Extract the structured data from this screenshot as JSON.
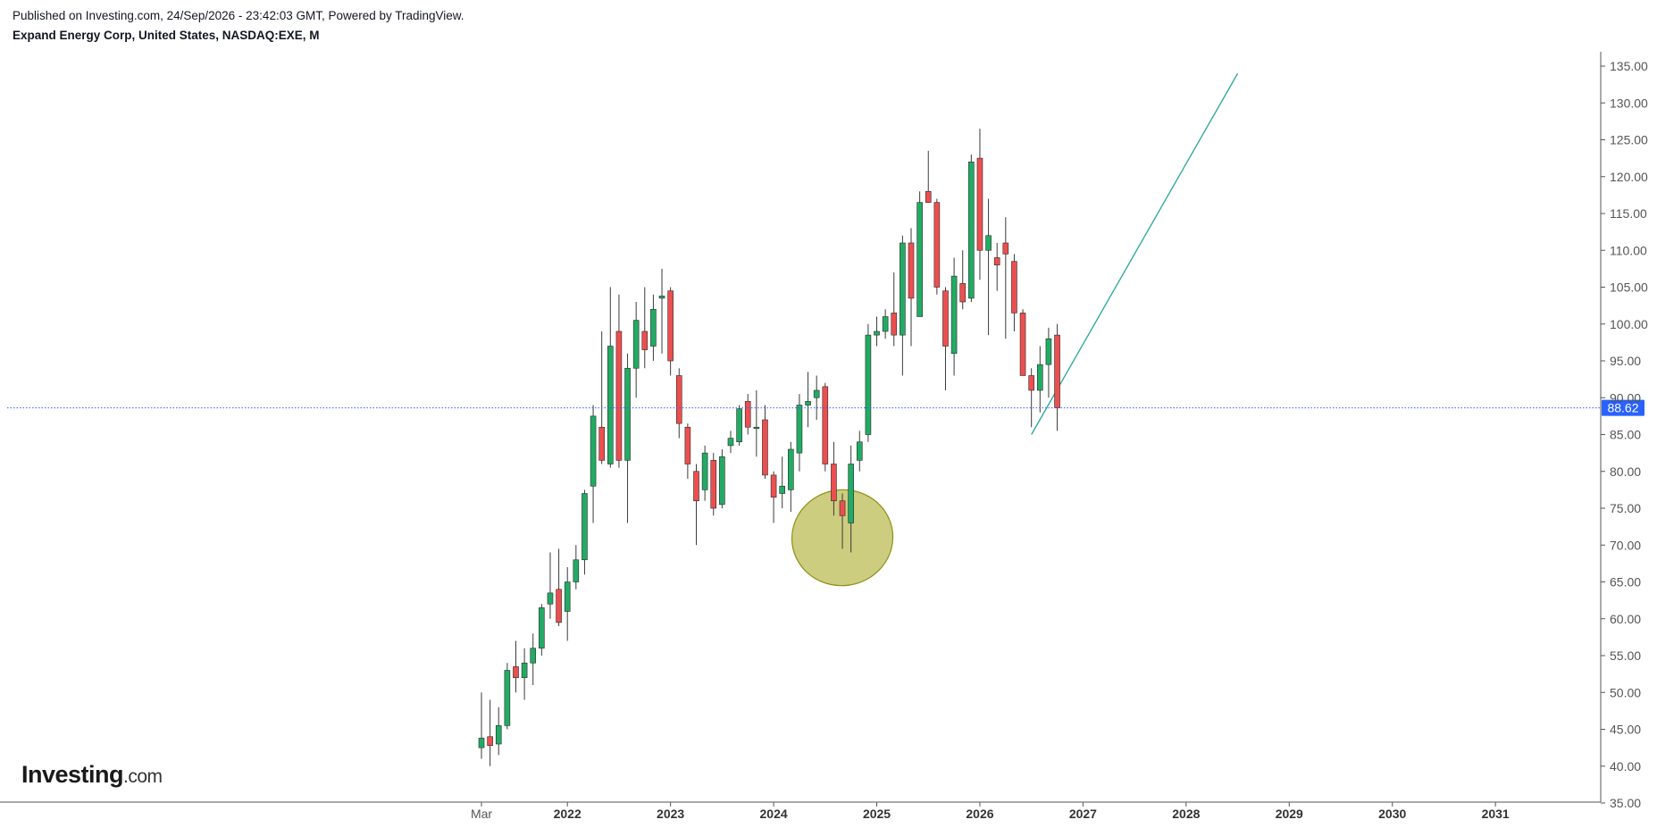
{
  "header": {
    "published": "Published on Investing.com, 24/Sep/2026 - 23:42:03 GMT, Powered by TradingView.",
    "instrument": "Expand Energy Corp, United States, NASDAQ:EXE, M"
  },
  "logo": {
    "brand": "Investing",
    "suffix": ".com"
  },
  "colors": {
    "up": "#22ab64",
    "down": "#ec4f4f",
    "wick": "#3a3a3a",
    "price_line": "#2962ff",
    "price_tag": "#2962ff",
    "trend_line": "#26a69a",
    "ellipse_fill": "#bcbc55",
    "ellipse_stroke": "#8e8e17",
    "axis": "#555555"
  },
  "chart_data": {
    "type": "candlestick",
    "interval": "M",
    "ylim": [
      35,
      136
    ],
    "y_ticks": [
      35,
      40,
      45,
      50,
      55,
      60,
      65,
      70,
      75,
      80,
      85,
      90,
      95,
      100,
      105,
      110,
      115,
      120,
      125,
      130,
      135
    ],
    "y_tick_labels": [
      "35.00",
      "40.00",
      "45.00",
      "50.00",
      "55.00",
      "60.00",
      "65.00",
      "70.00",
      "75.00",
      "80.00",
      "85.00",
      "90.00",
      "95.00",
      "100.00",
      "105.00",
      "110.00",
      "115.00",
      "120.00",
      "125.00",
      "130.00",
      "135.00"
    ],
    "x_labels": [
      {
        "label": "Mar",
        "date": "2021-03",
        "bold": false
      },
      {
        "label": "2022",
        "date": "2022-01",
        "bold": true
      },
      {
        "label": "2023",
        "date": "2023-01",
        "bold": true
      },
      {
        "label": "2024",
        "date": "2024-01",
        "bold": true
      },
      {
        "label": "2025",
        "date": "2025-01",
        "bold": true
      },
      {
        "label": "2026",
        "date": "2026-01",
        "bold": true
      },
      {
        "label": "2027",
        "date": "2027-01",
        "bold": true
      },
      {
        "label": "2028",
        "date": "2028-01",
        "bold": true
      },
      {
        "label": "2029",
        "date": "2029-01",
        "bold": true
      },
      {
        "label": "2030",
        "date": "2030-01",
        "bold": true
      },
      {
        "label": "2031",
        "date": "2031-01",
        "bold": true
      }
    ],
    "last_price": 88.62,
    "last_price_label": "88.62",
    "candles": [
      {
        "date": "2021-03",
        "o": 42.5,
        "h": 50.0,
        "l": 41.0,
        "c": 43.8
      },
      {
        "date": "2021-04",
        "o": 44.0,
        "h": 49.0,
        "l": 40.0,
        "c": 42.8
      },
      {
        "date": "2021-05",
        "o": 43.0,
        "h": 48.0,
        "l": 41.5,
        "c": 45.5
      },
      {
        "date": "2021-06",
        "o": 45.5,
        "h": 54.0,
        "l": 45.0,
        "c": 53.0
      },
      {
        "date": "2021-07",
        "o": 53.5,
        "h": 57.0,
        "l": 50.0,
        "c": 52.0
      },
      {
        "date": "2021-08",
        "o": 52.0,
        "h": 56.0,
        "l": 49.0,
        "c": 54.0
      },
      {
        "date": "2021-09",
        "o": 54.0,
        "h": 58.0,
        "l": 51.0,
        "c": 56.0
      },
      {
        "date": "2021-10",
        "o": 56.0,
        "h": 62.0,
        "l": 55.0,
        "c": 61.5
      },
      {
        "date": "2021-11",
        "o": 62.0,
        "h": 69.0,
        "l": 60.0,
        "c": 63.5
      },
      {
        "date": "2021-12",
        "o": 64.0,
        "h": 69.5,
        "l": 59.0,
        "c": 59.5
      },
      {
        "date": "2022-01",
        "o": 61.0,
        "h": 67.0,
        "l": 57.0,
        "c": 65.0
      },
      {
        "date": "2022-02",
        "o": 65.0,
        "h": 70.0,
        "l": 64.0,
        "c": 68.0
      },
      {
        "date": "2022-03",
        "o": 68.0,
        "h": 77.5,
        "l": 66.0,
        "c": 77.0
      },
      {
        "date": "2022-04",
        "o": 78.0,
        "h": 89.0,
        "l": 73.0,
        "c": 87.5
      },
      {
        "date": "2022-05",
        "o": 86.0,
        "h": 99.0,
        "l": 81.0,
        "c": 81.5
      },
      {
        "date": "2022-06",
        "o": 81.0,
        "h": 105.0,
        "l": 80.5,
        "c": 97.0
      },
      {
        "date": "2022-07",
        "o": 99.0,
        "h": 104.0,
        "l": 80.5,
        "c": 81.5
      },
      {
        "date": "2022-08",
        "o": 81.5,
        "h": 96.0,
        "l": 73.0,
        "c": 94.0
      },
      {
        "date": "2022-09",
        "o": 94.0,
        "h": 103.0,
        "l": 90.0,
        "c": 100.5
      },
      {
        "date": "2022-10",
        "o": 99.0,
        "h": 105.0,
        "l": 94.0,
        "c": 96.5
      },
      {
        "date": "2022-11",
        "o": 97.0,
        "h": 104.0,
        "l": 95.0,
        "c": 102.0
      },
      {
        "date": "2022-12",
        "o": 103.5,
        "h": 107.5,
        "l": 96.0,
        "c": 103.8
      },
      {
        "date": "2023-01",
        "o": 104.5,
        "h": 105.0,
        "l": 93.0,
        "c": 95.0
      },
      {
        "date": "2023-02",
        "o": 93.0,
        "h": 94.0,
        "l": 84.5,
        "c": 86.5
      },
      {
        "date": "2023-03",
        "o": 86.0,
        "h": 86.5,
        "l": 79.0,
        "c": 81.0
      },
      {
        "date": "2023-04",
        "o": 80.0,
        "h": 81.0,
        "l": 70.0,
        "c": 76.0
      },
      {
        "date": "2023-05",
        "o": 77.5,
        "h": 83.5,
        "l": 76.0,
        "c": 82.5
      },
      {
        "date": "2023-06",
        "o": 81.5,
        "h": 82.5,
        "l": 74.0,
        "c": 75.0
      },
      {
        "date": "2023-07",
        "o": 75.5,
        "h": 83.0,
        "l": 75.0,
        "c": 82.0
      },
      {
        "date": "2023-08",
        "o": 83.5,
        "h": 85.5,
        "l": 82.5,
        "c": 84.5
      },
      {
        "date": "2023-09",
        "o": 84.0,
        "h": 89.0,
        "l": 83.5,
        "c": 88.5
      },
      {
        "date": "2023-10",
        "o": 89.5,
        "h": 90.5,
        "l": 85.0,
        "c": 86.0
      },
      {
        "date": "2023-11",
        "o": 86.0,
        "h": 91.0,
        "l": 82.0,
        "c": 86.0
      },
      {
        "date": "2023-12",
        "o": 87.0,
        "h": 89.0,
        "l": 79.0,
        "c": 79.5
      },
      {
        "date": "2024-01",
        "o": 79.5,
        "h": 80.0,
        "l": 73.0,
        "c": 76.5
      },
      {
        "date": "2024-02",
        "o": 77.0,
        "h": 82.0,
        "l": 75.0,
        "c": 78.0
      },
      {
        "date": "2024-03",
        "o": 77.5,
        "h": 84.0,
        "l": 74.5,
        "c": 83.0
      },
      {
        "date": "2024-04",
        "o": 82.5,
        "h": 90.5,
        "l": 80.0,
        "c": 89.0
      },
      {
        "date": "2024-05",
        "o": 89.0,
        "h": 93.5,
        "l": 86.0,
        "c": 89.5
      },
      {
        "date": "2024-06",
        "o": 90.0,
        "h": 93.0,
        "l": 87.0,
        "c": 91.0
      },
      {
        "date": "2024-07",
        "o": 91.5,
        "h": 92.0,
        "l": 80.0,
        "c": 81.0
      },
      {
        "date": "2024-08",
        "o": 81.0,
        "h": 84.0,
        "l": 74.0,
        "c": 76.0
      },
      {
        "date": "2024-09",
        "o": 76.0,
        "h": 77.0,
        "l": 69.5,
        "c": 74.0
      },
      {
        "date": "2024-10",
        "o": 73.0,
        "h": 83.5,
        "l": 69.0,
        "c": 81.0
      },
      {
        "date": "2024-11",
        "o": 81.5,
        "h": 85.5,
        "l": 80.0,
        "c": 84.0
      },
      {
        "date": "2024-12",
        "o": 85.0,
        "h": 100.0,
        "l": 84.0,
        "c": 98.5
      },
      {
        "date": "2025-01",
        "o": 98.5,
        "h": 101.0,
        "l": 97.0,
        "c": 99.0
      },
      {
        "date": "2025-02",
        "o": 99.0,
        "h": 102.0,
        "l": 98.0,
        "c": 101.0
      },
      {
        "date": "2025-03",
        "o": 101.5,
        "h": 107.0,
        "l": 97.0,
        "c": 98.5
      },
      {
        "date": "2025-04",
        "o": 98.5,
        "h": 112.0,
        "l": 93.0,
        "c": 111.0
      },
      {
        "date": "2025-05",
        "o": 111.0,
        "h": 113.0,
        "l": 97.0,
        "c": 103.5
      },
      {
        "date": "2025-06",
        "o": 101.0,
        "h": 118.0,
        "l": 101.0,
        "c": 116.5
      },
      {
        "date": "2025-07",
        "o": 118.0,
        "h": 123.5,
        "l": 117.0,
        "c": 116.5
      },
      {
        "date": "2025-08",
        "o": 116.5,
        "h": 117.0,
        "l": 104.0,
        "c": 105.0
      },
      {
        "date": "2025-09",
        "o": 104.5,
        "h": 105.0,
        "l": 91.0,
        "c": 97.0
      },
      {
        "date": "2025-10",
        "o": 96.0,
        "h": 109.0,
        "l": 93.0,
        "c": 106.5
      },
      {
        "date": "2025-11",
        "o": 105.5,
        "h": 110.0,
        "l": 102.0,
        "c": 103.0
      },
      {
        "date": "2025-12",
        "o": 103.5,
        "h": 123.0,
        "l": 103.0,
        "c": 122.0
      },
      {
        "date": "2026-01",
        "o": 122.5,
        "h": 126.5,
        "l": 106.0,
        "c": 110.0
      },
      {
        "date": "2026-02",
        "o": 110.0,
        "h": 117.0,
        "l": 98.5,
        "c": 112.0
      },
      {
        "date": "2026-03",
        "o": 109.0,
        "h": 111.0,
        "l": 104.5,
        "c": 108.0
      },
      {
        "date": "2026-04",
        "o": 111.0,
        "h": 114.5,
        "l": 98.0,
        "c": 109.5
      },
      {
        "date": "2026-05",
        "o": 108.5,
        "h": 109.5,
        "l": 99.0,
        "c": 101.5
      },
      {
        "date": "2026-06",
        "o": 101.5,
        "h": 102.0,
        "l": 93.0,
        "c": 93.0
      },
      {
        "date": "2026-07",
        "o": 93.0,
        "h": 94.0,
        "l": 86.0,
        "c": 91.0
      },
      {
        "date": "2026-08",
        "o": 91.0,
        "h": 97.0,
        "l": 88.0,
        "c": 94.5
      },
      {
        "date": "2026-09",
        "o": 94.5,
        "h": 99.5,
        "l": 90.0,
        "c": 98.0
      },
      {
        "date": "2026-10",
        "o": 98.5,
        "h": 100.0,
        "l": 85.5,
        "c": 88.62
      }
    ],
    "drawings": {
      "trend_line": {
        "start": {
          "date": "2026-07",
          "price": 85.0
        },
        "end": {
          "date": "2028-07",
          "price": 134.0
        }
      },
      "ellipse": {
        "center": {
          "date": "2024-09",
          "price": 71.0
        },
        "half_width_months": 6,
        "half_height_price": 6.5
      }
    }
  }
}
